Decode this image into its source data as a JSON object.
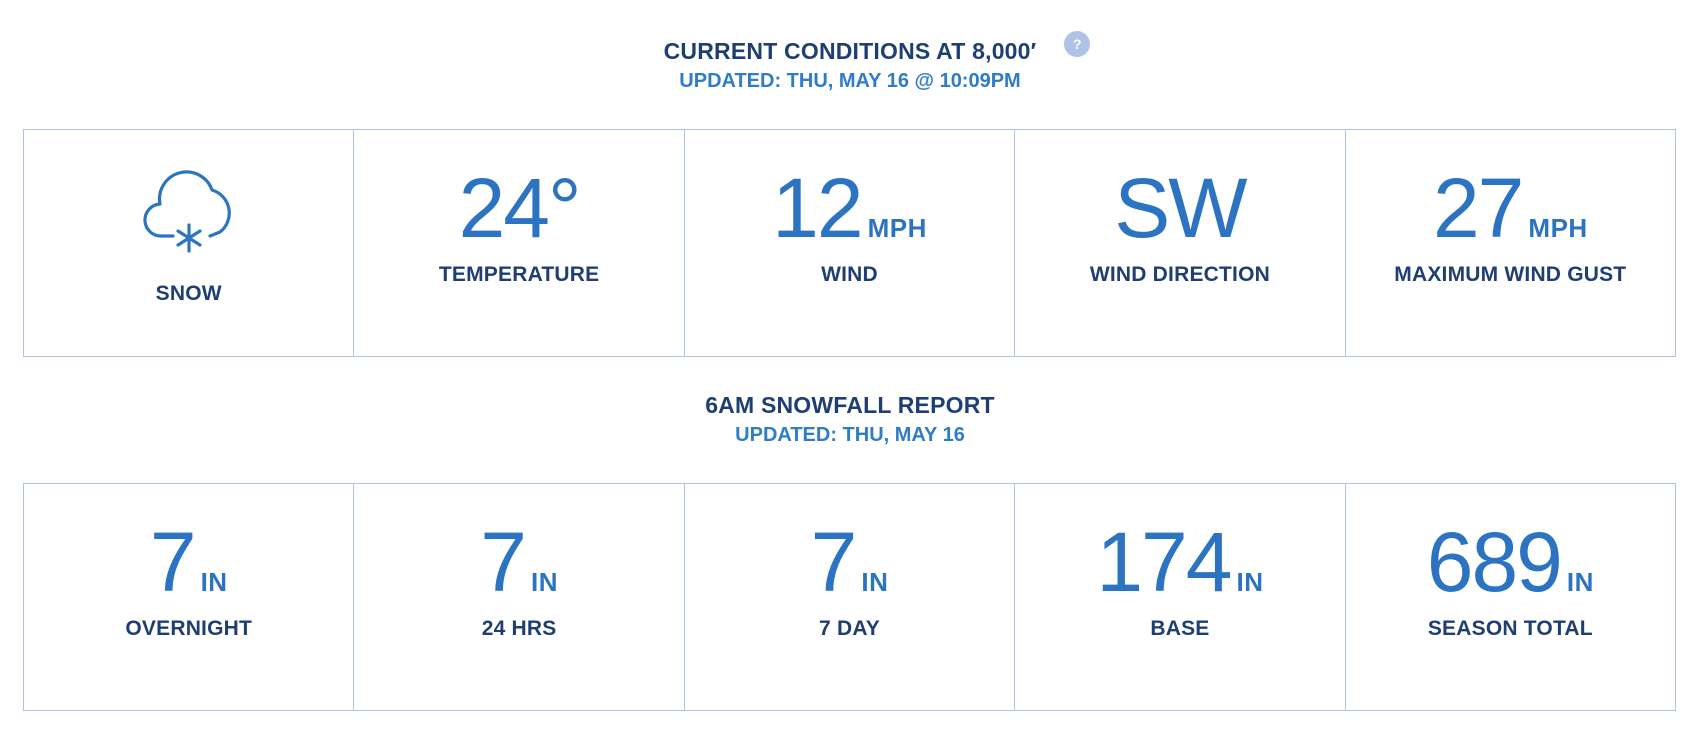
{
  "current_conditions": {
    "title": "CURRENT CONDITIONS AT 8,000′",
    "help_icon": "?",
    "updated": "UPDATED: THU, MAY 16 @ 10:09PM",
    "items": [
      {
        "icon": "snow-cloud-icon",
        "label": "SNOW"
      },
      {
        "value": "24°",
        "unit": "",
        "label": "TEMPERATURE"
      },
      {
        "value": "12",
        "unit": "MPH",
        "label": "WIND"
      },
      {
        "value": "SW",
        "unit": "",
        "label": "WIND DIRECTION"
      },
      {
        "value": "27",
        "unit": "MPH",
        "label": "MAXIMUM WIND GUST"
      }
    ]
  },
  "snowfall_report": {
    "title": "6AM SNOWFALL REPORT",
    "updated": "UPDATED: THU, MAY 16",
    "items": [
      {
        "value": "7",
        "unit": "IN",
        "label": "OVERNIGHT"
      },
      {
        "value": "7",
        "unit": "IN",
        "label": "24 HRS"
      },
      {
        "value": "7",
        "unit": "IN",
        "label": "7 DAY"
      },
      {
        "value": "174",
        "unit": "IN",
        "label": "BASE"
      },
      {
        "value": "689",
        "unit": "IN",
        "label": "SEASON TOTAL"
      }
    ]
  },
  "colors": {
    "title": "#1f3f73",
    "accent": "#2c74c2",
    "border": "#adc3e0",
    "help_icon_bg": "#aec3e6"
  }
}
